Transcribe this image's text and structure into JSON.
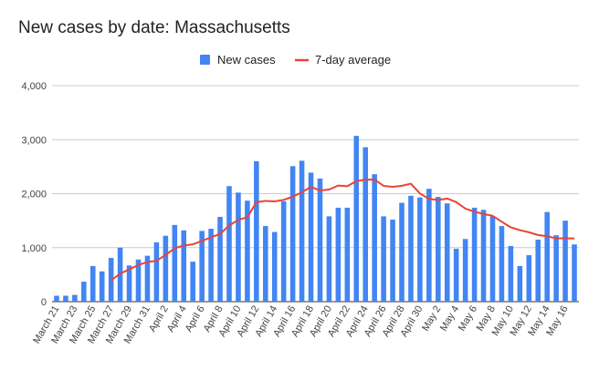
{
  "chart_data": {
    "type": "bar",
    "title": "New cases by date: Massachusetts",
    "xlabel": "",
    "ylabel": "",
    "ylim": [
      0,
      4000
    ],
    "yticks": [
      0,
      1000,
      2000,
      3000,
      4000
    ],
    "ytick_labels": [
      "0",
      "1,000",
      "2,000",
      "3,000",
      "4,000"
    ],
    "grid": true,
    "legend_position": "top",
    "colors": {
      "bars": "#4285f4",
      "line": "#ea4335"
    },
    "series": [
      {
        "name": "New cases",
        "type": "bar",
        "values": [
          110,
          110,
          125,
          370,
          660,
          560,
          810,
          1000,
          670,
          780,
          850,
          1100,
          1220,
          1420,
          1320,
          740,
          1310,
          1350,
          1570,
          2140,
          2020,
          1870,
          2600,
          1400,
          1290,
          1860,
          2510,
          2610,
          2390,
          2280,
          1580,
          1740,
          1740,
          3070,
          2860,
          2360,
          1580,
          1520,
          1830,
          1960,
          1930,
          2090,
          1940,
          1820,
          980,
          1160,
          1740,
          1700,
          1580,
          1400,
          1030,
          660,
          860,
          1150,
          1660,
          1230,
          1500,
          1060
        ]
      },
      {
        "name": "7-day average",
        "type": "line",
        "values": [
          null,
          null,
          null,
          null,
          null,
          null,
          394,
          519,
          599,
          678,
          736,
          756,
          866,
          989,
          1040,
          1062,
          1124,
          1192,
          1253,
          1411,
          1515,
          1564,
          1843,
          1866,
          1857,
          1885,
          1943,
          2028,
          2124,
          2060,
          2076,
          2150,
          2138,
          2232,
          2260,
          2260,
          2144,
          2127,
          2146,
          2185,
          2003,
          1903,
          1882,
          1910,
          1842,
          1723,
          1668,
          1622,
          1590,
          1480,
          1376,
          1324,
          1285,
          1234,
          1211,
          1172,
          1172,
          1170
        ]
      }
    ],
    "x_tick_labels": [
      "March 21",
      "March 23",
      "March 25",
      "March 27",
      "March 29",
      "March 31",
      "April 2",
      "April 4",
      "April 6",
      "April 8",
      "April 10",
      "April 12",
      "April 14",
      "April 16",
      "April 18",
      "April 20",
      "April 22",
      "April 24",
      "April 26",
      "April 28",
      "April 30",
      "May 2",
      "May 4",
      "May 6",
      "May 8",
      "May 10",
      "May 12",
      "May 14",
      "May 16"
    ]
  }
}
